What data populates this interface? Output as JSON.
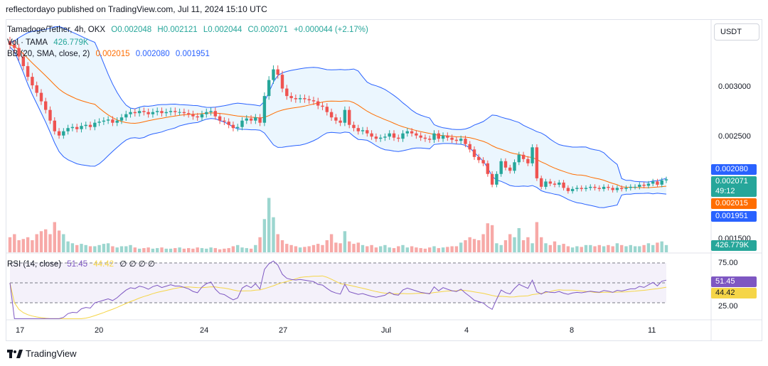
{
  "header": {
    "publisher_line": "reflectordayo published on TradingView.com, Jul 11, 2024 15:10 UTC"
  },
  "legend": {
    "symbol": "Tamadoge/Tether, 4h, OKX",
    "open": "O0.002048",
    "high": "H0.002121",
    "low": "L0.002044",
    "close": "C0.002071",
    "change": "+0.000044 (+2.17%)",
    "vol_label": "Vol · TAMA",
    "vol_value": "426.779K",
    "bb_label": "BB (20, SMA, close, 2)",
    "bb_basis": "0.002015",
    "bb_upper": "0.002080",
    "bb_lower": "0.001951",
    "rsi_label": "RSI (14, close)",
    "rsi_value": "51.45",
    "rsi_ma": "44.42",
    "rsi_extra": "∅ ∅ ∅ ∅"
  },
  "currency_button": "USDT",
  "price_axis": {
    "ticks": [
      "0.003000",
      "0.002500",
      "0.001500"
    ]
  },
  "price_tags": {
    "bb_upper": "0.002080",
    "last_price": "0.002071",
    "countdown": "49:12",
    "bb_basis": "0.002015",
    "bb_lower": "0.001951",
    "volume": "426.779K"
  },
  "rsi_axis": {
    "ticks": [
      "75.00",
      "25.00"
    ],
    "rsi_tag": "51.45",
    "ma_tag": "44.42"
  },
  "time_axis": {
    "labels": [
      "17",
      "20",
      "24",
      "27",
      "Jul",
      "4",
      "8",
      "11"
    ]
  },
  "footer": {
    "brand": "TradingView"
  },
  "colors": {
    "up": "#26a69a",
    "down": "#ef5350",
    "bb_band": "#2962ff",
    "bb_basis": "#ff6d00",
    "bb_fill": "#e3f2fd",
    "rsi_line": "#7e57c2",
    "rsi_ma": "#f5d547",
    "rsi_zone": "#ede7f6"
  },
  "chart_data": {
    "type": "candlestick",
    "timeframe": "4h",
    "y_range": [
      0.0015,
      0.00335
    ],
    "rsi_range": [
      10,
      90
    ],
    "date_ticks": [
      {
        "label": "17",
        "index": 1
      },
      {
        "label": "20",
        "index": 19
      },
      {
        "label": "24",
        "index": 43
      },
      {
        "label": "27",
        "index": 61
      },
      {
        "label": "Jul",
        "index": 85
      },
      {
        "label": "4",
        "index": 103
      },
      {
        "label": "8",
        "index": 127
      },
      {
        "label": "11",
        "index": 145
      }
    ],
    "close_prices": [
      0.00333,
      0.0033,
      0.00322,
      0.00313,
      0.00303,
      0.00295,
      0.00288,
      0.0028,
      0.00272,
      0.00262,
      0.00252,
      0.00248,
      0.00252,
      0.00255,
      0.00256,
      0.00254,
      0.00257,
      0.00258,
      0.00256,
      0.0026,
      0.00261,
      0.00262,
      0.00263,
      0.0026,
      0.00262,
      0.00265,
      0.00268,
      0.0027,
      0.00269,
      0.00271,
      0.0027,
      0.00268,
      0.0027,
      0.00271,
      0.00269,
      0.0027,
      0.00271,
      0.0027,
      0.0027,
      0.00269,
      0.00268,
      0.00266,
      0.00265,
      0.00268,
      0.0027,
      0.00271,
      0.00266,
      0.00262,
      0.00261,
      0.00258,
      0.00255,
      0.00256,
      0.00262,
      0.00264,
      0.00262,
      0.00265,
      0.0026,
      0.00285,
      0.003,
      0.0031,
      0.00305,
      0.00292,
      0.00285,
      0.00283,
      0.00282,
      0.00283,
      0.00282,
      0.00281,
      0.0028,
      0.00276,
      0.00275,
      0.0027,
      0.00265,
      0.00262,
      0.0026,
      0.00272,
      0.00258,
      0.00255,
      0.00252,
      0.00253,
      0.0025,
      0.00247,
      0.00245,
      0.00246,
      0.00247,
      0.0025,
      0.00246,
      0.00245,
      0.0025,
      0.00252,
      0.0025,
      0.00248,
      0.00246,
      0.00245,
      0.00244,
      0.0025,
      0.00245,
      0.00248,
      0.00246,
      0.00244,
      0.00243,
      0.00245,
      0.0024,
      0.00235,
      0.00228,
      0.00225,
      0.00222,
      0.00212,
      0.00202,
      0.00212,
      0.00224,
      0.00218,
      0.00215,
      0.00223,
      0.0023,
      0.00226,
      0.00222,
      0.00237,
      0.00208,
      0.002,
      0.00205,
      0.00203,
      0.00202,
      0.00204,
      0.00199,
      0.00196,
      0.00198,
      0.00199,
      0.00198,
      0.00199,
      0.002,
      0.00199,
      0.00198,
      0.002,
      0.00199,
      0.00197,
      0.00199,
      0.00198,
      0.00199,
      0.002,
      0.002,
      0.00202,
      0.00201,
      0.00203,
      0.00205,
      0.00202,
      0.00206,
      0.00207
    ],
    "volume_relative": [
      0.25,
      0.3,
      0.2,
      0.22,
      0.25,
      0.2,
      0.3,
      0.35,
      0.38,
      0.3,
      0.5,
      0.36,
      0.3,
      0.18,
      0.15,
      0.12,
      0.14,
      0.12,
      0.1,
      0.1,
      0.12,
      0.14,
      0.15,
      0.1,
      0.08,
      0.1,
      0.1,
      0.12,
      0.08,
      0.06,
      0.07,
      0.08,
      0.06,
      0.07,
      0.08,
      0.06,
      0.06,
      0.07,
      0.08,
      0.06,
      0.07,
      0.06,
      0.08,
      0.07,
      0.06,
      0.08,
      0.07,
      0.05,
      0.06,
      0.07,
      0.1,
      0.12,
      0.08,
      0.07,
      0.06,
      0.12,
      0.25,
      0.55,
      0.9,
      0.58,
      0.3,
      0.2,
      0.14,
      0.12,
      0.1,
      0.08,
      0.09,
      0.1,
      0.12,
      0.14,
      0.12,
      0.2,
      0.3,
      0.16,
      0.15,
      0.35,
      0.18,
      0.14,
      0.16,
      0.12,
      0.1,
      0.12,
      0.08,
      0.1,
      0.12,
      0.08,
      0.07,
      0.1,
      0.12,
      0.08,
      0.1,
      0.08,
      0.07,
      0.06,
      0.08,
      0.1,
      0.07,
      0.08,
      0.09,
      0.1,
      0.1,
      0.16,
      0.2,
      0.25,
      0.22,
      0.2,
      0.3,
      0.48,
      0.45,
      0.15,
      0.12,
      0.2,
      0.3,
      0.25,
      0.4,
      0.2,
      0.25,
      0.15,
      0.5,
      0.25,
      0.15,
      0.12,
      0.18,
      0.12,
      0.14,
      0.1,
      0.08,
      0.1,
      0.09,
      0.12,
      0.12,
      0.1,
      0.12,
      0.1,
      0.12,
      0.1,
      0.15,
      0.12,
      0.1,
      0.12,
      0.1,
      0.1,
      0.12,
      0.15,
      0.12,
      0.16,
      0.18,
      0.12,
      0.1,
      0.08
    ]
  }
}
